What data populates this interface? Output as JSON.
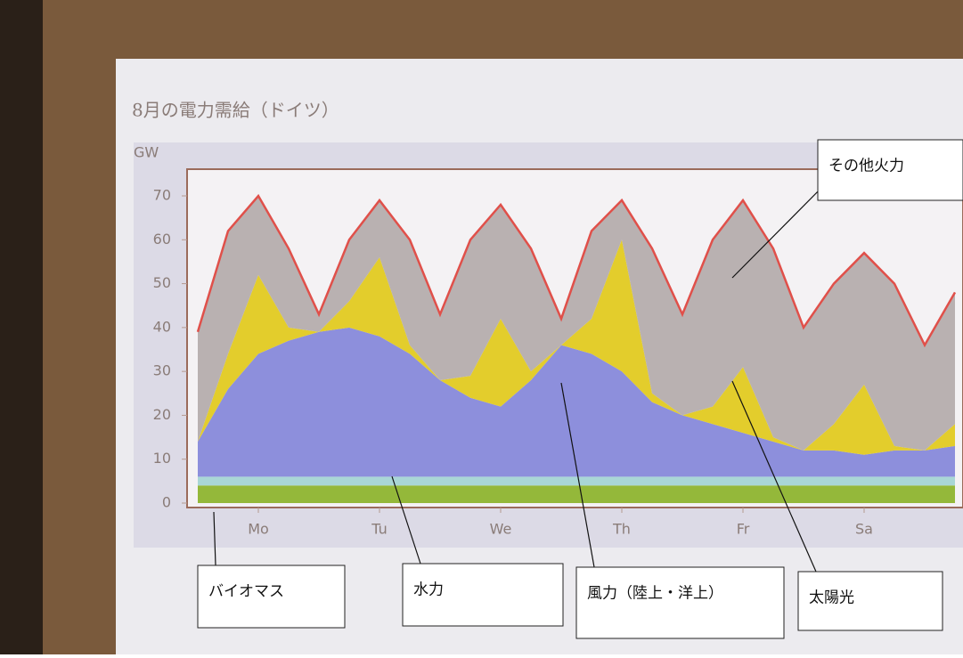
{
  "chart_data": {
    "type": "stacked_area",
    "title": "8月の電力需給（ドイツ）",
    "ylabel": "GW",
    "x": [
      0,
      6,
      12,
      18,
      24,
      30,
      36,
      42,
      48,
      54,
      60,
      66,
      72,
      78,
      84,
      90,
      96,
      102,
      108,
      114,
      120,
      126,
      132,
      138,
      144,
      150
    ],
    "xlim": [
      0,
      150
    ],
    "xticks": [
      {
        "value": 12,
        "label": "Mo"
      },
      {
        "value": 36,
        "label": "Tu"
      },
      {
        "value": 60,
        "label": "We"
      },
      {
        "value": 84,
        "label": "Th"
      },
      {
        "value": 108,
        "label": "Fr"
      },
      {
        "value": 132,
        "label": "Sa"
      }
    ],
    "ylim": [
      0,
      70
    ],
    "yticks": [
      0,
      10,
      20,
      30,
      40,
      50,
      60,
      70
    ],
    "total_line_color": "#e0504a",
    "series": [
      {
        "name": "バイオマス",
        "color": "#94b83a",
        "values": [
          4,
          4,
          4,
          4,
          4,
          4,
          4,
          4,
          4,
          4,
          4,
          4,
          4,
          4,
          4,
          4,
          4,
          4,
          4,
          4,
          4,
          4,
          4,
          4,
          4,
          4
        ]
      },
      {
        "name": "水力",
        "color": "#a9d6d6",
        "values": [
          2,
          2,
          2,
          2,
          2,
          2,
          2,
          2,
          2,
          2,
          2,
          2,
          2,
          2,
          2,
          2,
          2,
          2,
          2,
          2,
          2,
          2,
          2,
          2,
          2,
          2
        ]
      },
      {
        "name": "風力（陸上・洋上）",
        "color": "#8d8fdc",
        "values": [
          8,
          20,
          28,
          31,
          33,
          34,
          32,
          28,
          22,
          18,
          16,
          22,
          30,
          28,
          24,
          17,
          14,
          12,
          10,
          8,
          6,
          6,
          5,
          6,
          6,
          7
        ]
      },
      {
        "name": "太陽光",
        "color": "#e3cd2c",
        "values": [
          0,
          8,
          18,
          3,
          0,
          6,
          18,
          2,
          0,
          5,
          20,
          2,
          0,
          8,
          30,
          2,
          0,
          4,
          15,
          1,
          0,
          6,
          16,
          1,
          0,
          5
        ]
      },
      {
        "name": "その他火力",
        "color": "#b9b1b1",
        "values": [
          25,
          28,
          18,
          18,
          4,
          14,
          13,
          24,
          15,
          31,
          26,
          28,
          6,
          20,
          9,
          33,
          23,
          38,
          38,
          43,
          28,
          32,
          30,
          37,
          24,
          30
        ]
      }
    ]
  }
}
